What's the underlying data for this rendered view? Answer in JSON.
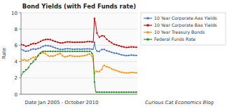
{
  "chart_data": {
    "type": "line",
    "title": "Bond Yields (with Fed Funds rate)",
    "x_label": "Date Jan 2005 - October 2010",
    "y_label": "Rate",
    "annotations": [
      "Curious Cat Economics Blog"
    ],
    "ylim": [
      0,
      10
    ],
    "yticks": [
      0,
      2,
      4,
      6,
      8,
      10
    ],
    "grid": true,
    "legend": "right",
    "tick_labels": "y",
    "marker": "square",
    "line_style": "solid",
    "series": [
      {
        "name": "10 Year Corporate Aaa Yields",
        "color": "#4472c4",
        "values": [
          5.49,
          5.45,
          5.39,
          5.28,
          5.26,
          5.31,
          5.3,
          5.39,
          5.47,
          5.52,
          5.55,
          5.54,
          5.51,
          5.54,
          5.62,
          5.63,
          5.72,
          5.79,
          5.86,
          5.94,
          5.97,
          5.97,
          5.95,
          5.94,
          5.9,
          5.85,
          5.8,
          5.75,
          5.67,
          5.62,
          5.58,
          5.52,
          5.5,
          5.49,
          5.5,
          5.52,
          5.55,
          5.57,
          5.57,
          5.56,
          5.56,
          5.53,
          5.52,
          5.52,
          5.52,
          5.53,
          5.54,
          5.53,
          5.53,
          5.52,
          5.53,
          5.54,
          5.55,
          5.55,
          5.56,
          5.57,
          5.55,
          5.53,
          5.52,
          5.45,
          6.36,
          5.5,
          5.29,
          5.22,
          5.25,
          5.42,
          5.48,
          5.49,
          5.49,
          5.41,
          5.33,
          5.28,
          5.24,
          5.18,
          5.14,
          5.09,
          5.05,
          5.03,
          5.02,
          4.98,
          4.93,
          4.88,
          4.83,
          4.81,
          4.78,
          4.75,
          4.73,
          4.74,
          4.76,
          4.79,
          4.8,
          4.79,
          4.78,
          4.77,
          4.76,
          4.75
        ]
      },
      {
        "name": "10 Year Corporate Baa Yields",
        "color": "#cc0000",
        "values": [
          6.1,
          6.06,
          6.02,
          5.93,
          5.88,
          5.93,
          5.95,
          6.03,
          6.13,
          6.18,
          6.22,
          6.22,
          6.2,
          6.24,
          6.34,
          6.38,
          6.49,
          6.56,
          6.62,
          6.67,
          6.7,
          6.71,
          6.72,
          6.73,
          6.69,
          6.63,
          6.58,
          6.52,
          6.47,
          6.42,
          6.37,
          6.32,
          6.29,
          6.28,
          6.29,
          6.31,
          6.36,
          6.39,
          6.41,
          6.4,
          6.41,
          6.38,
          6.37,
          6.36,
          6.36,
          6.37,
          6.38,
          6.37,
          6.38,
          6.37,
          6.38,
          6.38,
          6.4,
          6.41,
          6.44,
          6.46,
          6.45,
          6.44,
          6.42,
          6.35,
          9.3,
          8.6,
          7.5,
          7.2,
          7.0,
          7.1,
          7.15,
          7.2,
          7.1,
          6.9,
          6.75,
          6.6,
          6.5,
          6.4,
          6.32,
          6.22,
          6.12,
          6.08,
          6.05,
          6.0,
          5.95,
          5.9,
          5.85,
          5.82,
          5.79,
          5.76,
          5.73,
          5.74,
          5.76,
          5.79,
          5.8,
          5.79,
          5.78,
          5.77,
          5.76,
          5.75
        ]
      },
      {
        "name": "10 Year Treasury Bonds",
        "color": "#ff8c00",
        "values": [
          4.22,
          4.16,
          4.17,
          4.34,
          4.14,
          3.96,
          4.18,
          4.26,
          4.35,
          4.46,
          4.53,
          4.39,
          4.57,
          4.57,
          4.68,
          4.99,
          5.11,
          5.11,
          5.09,
          4.99,
          4.96,
          4.91,
          4.73,
          4.61,
          4.68,
          4.72,
          4.67,
          4.68,
          4.76,
          4.84,
          4.89,
          4.97,
          4.98,
          4.91,
          4.71,
          4.6,
          4.59,
          4.63,
          4.65,
          4.7,
          4.72,
          4.72,
          4.68,
          4.65,
          4.63,
          4.64,
          4.65,
          4.64,
          4.65,
          4.69,
          4.69,
          4.72,
          4.74,
          4.74,
          4.84,
          4.96,
          4.93,
          4.83,
          4.68,
          4.03,
          2.52,
          2.88,
          2.78,
          2.74,
          2.79,
          2.96,
          3.03,
          3.47,
          3.53,
          3.41,
          3.38,
          3.35,
          3.28,
          3.21,
          3.13,
          3.04,
          2.98,
          2.93,
          2.9,
          2.83,
          2.78,
          2.73,
          2.7,
          2.67,
          2.64,
          2.62,
          2.6,
          2.61,
          2.62,
          2.65,
          2.68,
          2.67,
          2.65,
          2.64,
          2.63,
          2.62
        ]
      },
      {
        "name": "Federal Funds Rate",
        "color": "#228B22",
        "values": [
          2.28,
          2.5,
          2.75,
          2.75,
          3.0,
          3.0,
          3.25,
          3.5,
          3.75,
          3.75,
          4.0,
          4.25,
          4.25,
          4.5,
          4.75,
          5.0,
          5.0,
          5.25,
          5.25,
          5.25,
          5.25,
          5.25,
          5.25,
          5.25,
          5.25,
          5.25,
          5.25,
          5.25,
          5.25,
          5.25,
          5.25,
          5.25,
          5.25,
          5.25,
          5.25,
          5.25,
          5.25,
          5.25,
          5.25,
          5.25,
          5.25,
          5.25,
          5.25,
          5.25,
          5.25,
          5.25,
          5.25,
          5.25,
          5.25,
          5.25,
          5.25,
          5.25,
          5.25,
          5.25,
          5.25,
          5.25,
          5.25,
          5.25,
          5.0,
          4.75,
          1.5,
          0.25,
          0.25,
          0.25,
          0.25,
          0.25,
          0.25,
          0.25,
          0.25,
          0.25,
          0.25,
          0.25,
          0.25,
          0.25,
          0.25,
          0.25,
          0.25,
          0.25,
          0.25,
          0.25,
          0.25,
          0.25,
          0.25,
          0.25,
          0.25,
          0.25,
          0.25,
          0.25,
          0.25,
          0.25,
          0.25,
          0.25,
          0.25,
          0.25,
          0.25,
          0.25
        ]
      }
    ]
  }
}
